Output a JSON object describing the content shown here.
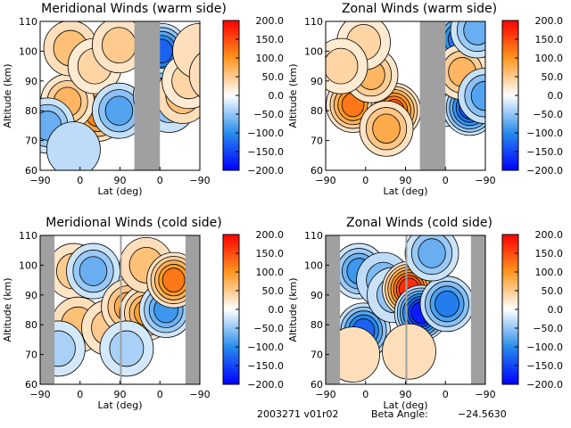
{
  "chart_data": [
    {
      "type": "heatmap",
      "title": "Meridional Winds (warm side)",
      "xlabel": "Lat (deg)",
      "ylabel": "Altitude (km)",
      "xticks": [
        "-90",
        "0",
        "90",
        "0",
        "-90"
      ],
      "yticks": [
        "60",
        "70",
        "80",
        "90",
        "100",
        "110"
      ],
      "ylim": [
        60,
        110
      ],
      "colorbar": {
        "range": [
          -200,
          200
        ],
        "ticks": [
          "200.0",
          "150.0",
          "100.0",
          "50.0",
          "0.0",
          "-50.0",
          "-100.0",
          "-150.0",
          "-200.0"
        ]
      },
      "gray_bands": [
        [
          0.59,
          0.75
        ]
      ],
      "blobs": [
        {
          "x": 0.38,
          "y": 79,
          "v": 110
        },
        {
          "x": 0.18,
          "y": 83,
          "v": 70
        },
        {
          "x": 0.2,
          "y": 101,
          "v": 60
        },
        {
          "x": 0.36,
          "y": 95,
          "v": 40
        },
        {
          "x": 0.52,
          "y": 102,
          "v": 50
        },
        {
          "x": 0.52,
          "y": 80,
          "v": -80
        },
        {
          "x": 0.05,
          "y": 75,
          "v": -70
        },
        {
          "x": 0.22,
          "y": 67,
          "v": -30
        },
        {
          "x": 0.8,
          "y": 100,
          "v": -130
        },
        {
          "x": 0.79,
          "y": 85,
          "v": -110
        },
        {
          "x": 0.85,
          "y": 82,
          "v": -50
        },
        {
          "x": 0.94,
          "y": 85,
          "v": 60
        },
        {
          "x": 0.98,
          "y": 90,
          "v": 40
        },
        {
          "x": 1.05,
          "y": 100,
          "v": 30
        },
        {
          "x": 1.16,
          "y": 92,
          "v": 30
        }
      ]
    },
    {
      "type": "heatmap",
      "title": "Zonal Winds (warm side)",
      "xlabel": "Lat (deg)",
      "ylabel": "Altitude (km)",
      "xticks": [
        "-90",
        "0",
        "90",
        "0",
        "-90"
      ],
      "yticks": [
        "60",
        "70",
        "80",
        "90",
        "100",
        "110"
      ],
      "ylim": [
        60,
        110
      ],
      "colorbar": {
        "range": [
          -200,
          200
        ],
        "ticks": [
          "200.0",
          "150.0",
          "100.0",
          "50.0",
          "0.0",
          "-50.0",
          "-100.0",
          "-150.0",
          "-200.0"
        ]
      },
      "gray_bands": [
        [
          0.59,
          0.75
        ]
      ],
      "blobs": [
        {
          "x": 0.18,
          "y": 82,
          "v": 120
        },
        {
          "x": 0.45,
          "y": 80,
          "v": 140
        },
        {
          "x": 0.3,
          "y": 92,
          "v": 70
        },
        {
          "x": 0.25,
          "y": 103,
          "v": 40
        },
        {
          "x": 0.4,
          "y": 74,
          "v": 80
        },
        {
          "x": 0.1,
          "y": 95,
          "v": 40
        },
        {
          "x": 0.88,
          "y": 104,
          "v": -120
        },
        {
          "x": 0.8,
          "y": 84,
          "v": -110
        },
        {
          "x": 0.95,
          "y": 81,
          "v": -140
        },
        {
          "x": 0.9,
          "y": 93,
          "v": 70
        },
        {
          "x": 1.05,
          "y": 85,
          "v": -80
        },
        {
          "x": 1.0,
          "y": 107,
          "v": -70
        }
      ]
    },
    {
      "type": "heatmap",
      "title": "Meridional Winds (cold side)",
      "xlabel": "Lat (deg)",
      "ylabel": "Altitude (km)",
      "xticks": [
        "-90",
        "0",
        "90",
        "0",
        "-90"
      ],
      "yticks": [
        "60",
        "70",
        "80",
        "90",
        "100",
        "110"
      ],
      "ylim": [
        60,
        110
      ],
      "colorbar": {
        "range": [
          -200,
          200
        ],
        "ticks": [
          "200.0",
          "150.0",
          "100.0",
          "50.0",
          "0.0",
          "-50.0",
          "-100.0",
          "-150.0",
          "-200.0"
        ]
      },
      "gray_bands": [
        [
          0.0,
          0.09
        ],
        [
          0.5,
          0.505
        ],
        [
          0.91,
          1.0
        ]
      ],
      "blobs": [
        {
          "x": 0.22,
          "y": 98,
          "v": 50
        },
        {
          "x": 0.25,
          "y": 80,
          "v": 60
        },
        {
          "x": 0.45,
          "y": 79,
          "v": 50
        },
        {
          "x": 0.35,
          "y": 98,
          "v": -70
        },
        {
          "x": 0.58,
          "y": 86,
          "v": 80
        },
        {
          "x": 0.7,
          "y": 84,
          "v": 90
        },
        {
          "x": 0.7,
          "y": 100,
          "v": 60
        },
        {
          "x": 0.83,
          "y": 85,
          "v": -90
        },
        {
          "x": 0.88,
          "y": 95,
          "v": 120
        },
        {
          "x": 0.12,
          "y": 72,
          "v": -40
        },
        {
          "x": 0.57,
          "y": 72,
          "v": -40
        }
      ]
    },
    {
      "type": "heatmap",
      "title": "Zonal Winds (cold side)",
      "xlabel": "Lat (deg)",
      "ylabel": "Altitude (km)",
      "xticks": [
        "-90",
        "0",
        "90",
        "0",
        "-90"
      ],
      "yticks": [
        "60",
        "70",
        "80",
        "90",
        "100",
        "110"
      ],
      "ylim": [
        60,
        110
      ],
      "colorbar": {
        "range": [
          -200,
          200
        ],
        "ticks": [
          "200.0",
          "150.0",
          "100.0",
          "50.0",
          "0.0",
          "-50.0",
          "-100.0",
          "-150.0",
          "-200.0"
        ]
      },
      "gray_bands": [
        [
          0.0,
          0.09
        ],
        [
          0.5,
          0.505
        ],
        [
          0.91,
          1.0
        ]
      ],
      "blobs": [
        {
          "x": 0.25,
          "y": 78,
          "v": -130
        },
        {
          "x": 0.22,
          "y": 98,
          "v": -90
        },
        {
          "x": 0.38,
          "y": 95,
          "v": -60
        },
        {
          "x": 0.45,
          "y": 90,
          "v": -50
        },
        {
          "x": 0.55,
          "y": 92,
          "v": 170
        },
        {
          "x": 0.63,
          "y": 84,
          "v": -180
        },
        {
          "x": 0.8,
          "y": 87,
          "v": -110
        },
        {
          "x": 0.7,
          "y": 104,
          "v": -70
        },
        {
          "x": 0.18,
          "y": 70,
          "v": 30
        },
        {
          "x": 0.55,
          "y": 71,
          "v": 30
        }
      ]
    }
  ],
  "footer": {
    "id": "2003271 v01r02",
    "beta_label": "Beta Angle:",
    "beta_value": "-24.5630"
  }
}
